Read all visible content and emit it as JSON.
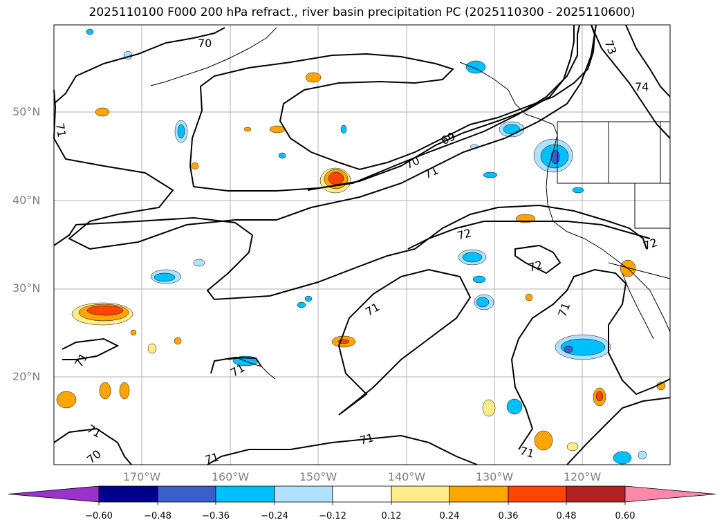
{
  "title": "2025110100 F000 200 hPa refract., river basin precipitation PC (2025110300 - 2025110600)",
  "lat_labels": [
    "50°N",
    "40°N",
    "30°N",
    "20°N"
  ],
  "lon_labels": [
    "170°W",
    "160°W",
    "150°W",
    "140°W",
    "130°W",
    "120°W"
  ],
  "contour_labels": [
    "70",
    "71",
    "69",
    "70",
    "71",
    "72",
    "72",
    "71",
    "71",
    "71",
    "71",
    "71",
    "70",
    "71",
    "71",
    "71",
    "73",
    "74",
    "72"
  ],
  "colorbar": {
    "ticks": [
      "−0.60",
      "−0.48",
      "−0.36",
      "−0.24",
      "−0.12",
      "0.12",
      "0.24",
      "0.36",
      "0.48",
      "0.60"
    ],
    "colors": [
      "#9933cc",
      "#00008b",
      "#3a5fcd",
      "#00bfff",
      "#b0e2ff",
      "#ffffff",
      "#ffec8b",
      "#ffa500",
      "#ff4500",
      "#b22222",
      "#ff88aa"
    ]
  }
}
